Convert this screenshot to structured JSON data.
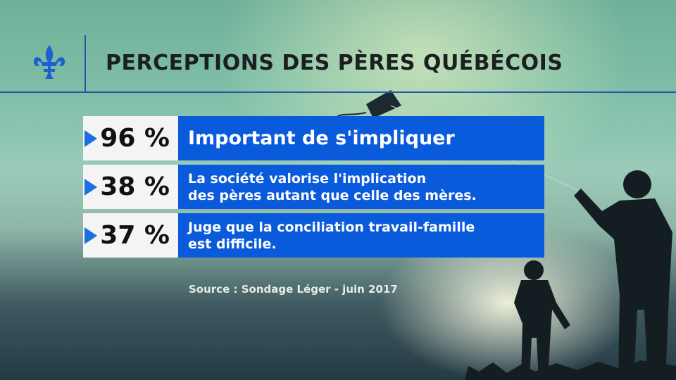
{
  "header": {
    "title": "PERCEPTIONS DES PÈRES QUÉBÉCOIS",
    "emblem_icon": "fleur-de-lis-icon"
  },
  "stats": [
    {
      "percent": "96 %",
      "text": "Important de s'impliquer"
    },
    {
      "percent": "38 %",
      "text": "La société valorise l'implication\ndes pères autant que celle des mères."
    },
    {
      "percent": "37 %",
      "text": "Juge que la conciliation travail-famille\nest difficile."
    }
  ],
  "source": "Source : Sondage Léger - juin 2017",
  "colors": {
    "accent_blue": "#0a5adc",
    "line_blue": "#2a55a8",
    "label_bg": "#f4f4f4"
  }
}
